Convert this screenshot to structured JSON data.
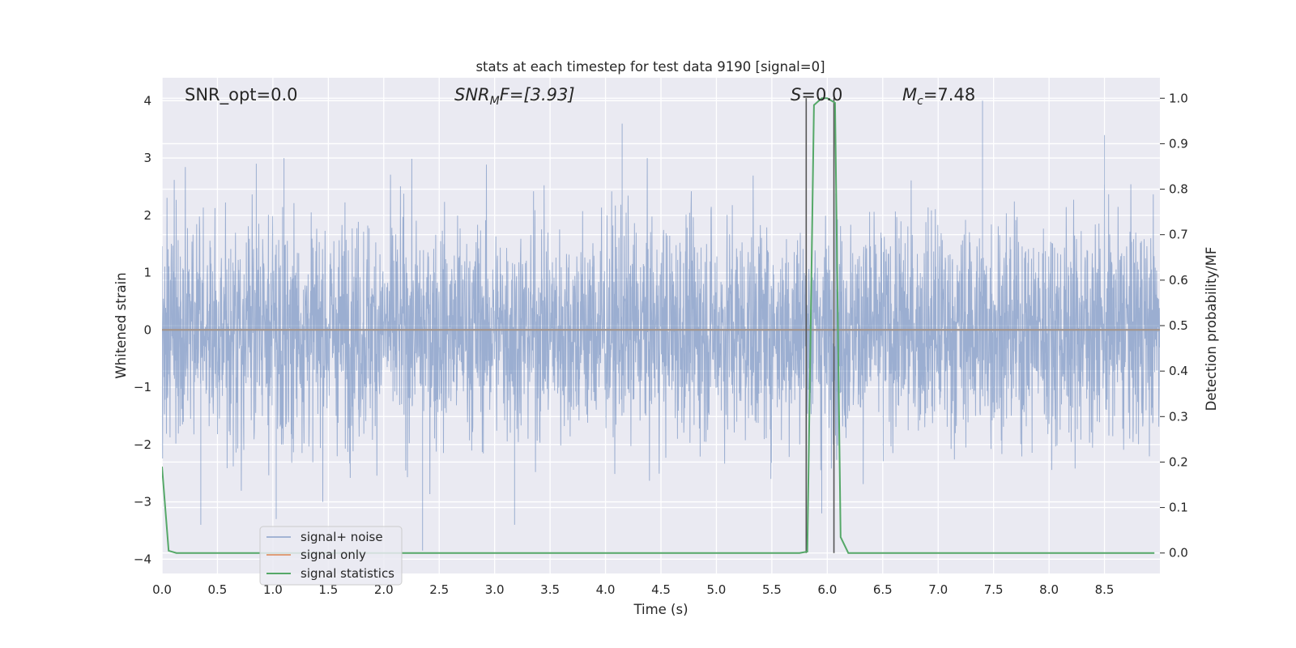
{
  "chart_data": {
    "type": "line",
    "title": "stats at each timestep for test data 9190 [signal=0]",
    "xlabel": "Time (s)",
    "ylabel": "Whitened strain",
    "y2label": "Detection probability/MF",
    "xlim": [
      0.0,
      9.0
    ],
    "ylim": [
      -4.25,
      4.4
    ],
    "y2lim": [
      -0.045,
      1.045
    ],
    "x_ticks": [
      "0.0",
      "0.5",
      "1.0",
      "1.5",
      "2.0",
      "2.5",
      "3.0",
      "3.5",
      "4.0",
      "4.5",
      "5.0",
      "5.5",
      "6.0",
      "6.5",
      "7.0",
      "7.5",
      "8.0",
      "8.5"
    ],
    "y_ticks": [
      "−4",
      "−3",
      "−2",
      "−1",
      "0",
      "1",
      "2",
      "3",
      "4"
    ],
    "y2_ticks": [
      "0.0",
      "0.1",
      "0.2",
      "0.3",
      "0.4",
      "0.5",
      "0.6",
      "0.7",
      "0.8",
      "0.9",
      "1.0"
    ],
    "grid": true,
    "legend_position": "lower-left",
    "annotations": {
      "snr_opt": "SNR_opt=0.0",
      "snr_mf_symbol": "SNR",
      "snr_mf_sub": "M",
      "snr_mf_rest": "F=[3.93]",
      "s_symbol": "S",
      "s_rest": "=0.0",
      "mc_symbol": "M",
      "mc_sub": "c",
      "mc_rest": "=7.48"
    },
    "series": [
      {
        "name": "signal+ noise",
        "color": "#4c72b0",
        "kind": "noise",
        "description_values": "whitened strain noise, approx. Gaussian, amplitude mostly within ±2.5, peaks to about ±4",
        "peaks": [
          [
            0.35,
            -3.4
          ],
          [
            0.85,
            2.9
          ],
          [
            1.03,
            -3.3
          ],
          [
            1.1,
            3.0
          ],
          [
            2.35,
            -3.85
          ],
          [
            3.18,
            -3.4
          ],
          [
            4.15,
            3.6
          ],
          [
            5.95,
            -3.2
          ],
          [
            7.4,
            4.0
          ],
          [
            8.5,
            3.4
          ]
        ]
      },
      {
        "name": "signal only",
        "color": "#dd8452",
        "x": [
          0.0,
          9.0
        ],
        "y": [
          0.0,
          0.0
        ]
      },
      {
        "name": "signal statistics",
        "color": "#55a868",
        "axis": "right",
        "x": [
          0.0,
          0.06,
          0.13,
          0.5,
          1.0,
          2.0,
          3.0,
          4.0,
          5.0,
          5.6,
          5.75,
          5.82,
          5.88,
          5.95,
          6.0,
          6.07,
          6.12,
          6.19,
          6.3,
          7.0,
          8.0,
          8.95
        ],
        "y": [
          0.19,
          0.005,
          0.0,
          0.0,
          0.0,
          0.0,
          0.0,
          0.0,
          0.0,
          0.0,
          0.0,
          0.003,
          0.985,
          1.0,
          1.0,
          0.99,
          0.035,
          0.0,
          0.0,
          0.0,
          0.0,
          0.0
        ]
      }
    ],
    "vertical_markers": [
      5.81,
      6.06
    ]
  }
}
